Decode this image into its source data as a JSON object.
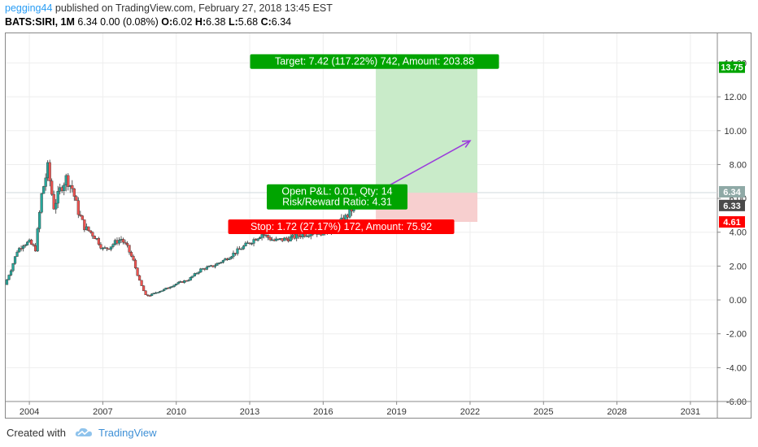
{
  "header": {
    "author": "pegging44",
    "published_text": " published on TradingView.com, February 27, 2018 13:45 EST"
  },
  "symbol_line": {
    "symbol": "BATS:SIRI, 1M",
    "quote": " 6.34 0.00 (0.08%) ",
    "o_label": "O:",
    "o": "6.02",
    "h_label": " H:",
    "h": "6.38",
    "l_label": " L:",
    "l": "5.68",
    "c_label": " C:",
    "c": "6.34"
  },
  "footer": {
    "created_with": "Created with",
    "brand": "TradingView",
    "logo_icon": "tradingview-cloud-icon"
  },
  "colors": {
    "up_candle": "#26a69a",
    "down_candle": "#ef5350",
    "target_zone": "#c9ebc9",
    "stop_zone": "#f7cfcf",
    "target_label_bg": "#00a400",
    "stop_label_bg": "#ff0000",
    "arrow": "#9b3ddb",
    "axis_text": "#333333"
  },
  "chart_data": {
    "type": "candlestick",
    "x_ticks": [
      "2004",
      "2007",
      "2010",
      "2013",
      "2016",
      "2019",
      "2022",
      "2025",
      "2028",
      "2031"
    ],
    "y_ticks": [
      "14.00",
      "12.00",
      "10.00",
      "8.00",
      "6.00",
      "4.00",
      "2.00",
      "0.00",
      "-2.00",
      "-4.00",
      "-6.00"
    ],
    "ylim": [
      -6.0,
      15.8
    ],
    "xlim": [
      2003.0,
      2032.1
    ],
    "series": [
      {
        "t": [
          2003.0,
          2003.25,
          2003.5,
          2003.75,
          2004.0,
          2004.25,
          2004.5,
          2004.75,
          2005.0,
          2005.25,
          2005.5,
          2005.75,
          2006.0,
          2006.25,
          2006.5,
          2006.75,
          2007.0,
          2007.25,
          2007.5,
          2007.75,
          2008.0,
          2008.25,
          2008.5,
          2008.75,
          2009.0,
          2009.25,
          2009.5,
          2009.75,
          2010.0,
          2010.5,
          2011.0,
          2011.5,
          2012.0,
          2012.5,
          2013.0,
          2013.5,
          2014.0,
          2014.5,
          2015.0,
          2015.5,
          2016.0,
          2016.5,
          2017.0,
          2017.25,
          2017.5
        ],
        "close": [
          0.9,
          1.8,
          2.9,
          3.3,
          3.4,
          3.0,
          6.2,
          7.8,
          5.5,
          6.5,
          7.2,
          6.6,
          5.2,
          4.3,
          4.0,
          3.6,
          3.0,
          3.1,
          3.4,
          3.6,
          3.1,
          2.3,
          1.1,
          0.25,
          0.3,
          0.5,
          0.6,
          0.8,
          0.95,
          1.2,
          1.8,
          2.0,
          2.4,
          2.9,
          3.4,
          3.9,
          3.5,
          3.6,
          3.8,
          4.0,
          4.0,
          4.3,
          5.0,
          5.5,
          6.34
        ]
      }
    ]
  },
  "price_labels": {
    "target_price": "13.75",
    "current_price": "6.34",
    "prev_close": "6.33",
    "stop_price": "4.61"
  },
  "position": {
    "start_t": 2018.15,
    "end_t": 2022.3,
    "entry": 6.33,
    "target": 13.75,
    "stop": 4.61,
    "arrow_from": [
      2018.15,
      6.33
    ],
    "arrow_to": [
      2022.0,
      9.4
    ],
    "target_label": "Target: 7.42 (117.22%) 742, Amount: 203.88",
    "open_pl_label": "Open P&L: 0.01, Qty: 14",
    "risk_reward_label": "Risk/Reward Ratio: 4.31",
    "stop_label": "Stop: 1.72 (27.17%) 172, Amount: 75.92"
  }
}
